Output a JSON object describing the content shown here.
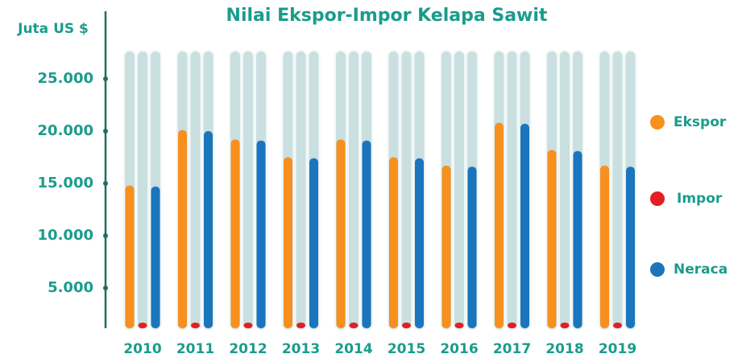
{
  "chart_data": {
    "type": "bar",
    "title": "Nilai Ekspor-Impor Kelapa Sawit",
    "y_label": "Juta US $",
    "categories": [
      "2010",
      "2011",
      "2012",
      "2013",
      "2014",
      "2015",
      "2016",
      "2017",
      "2018",
      "2019"
    ],
    "series": [
      {
        "name": "Ekspor",
        "color": "#f7901e",
        "values": [
          14800,
          20100,
          19200,
          17500,
          19200,
          17500,
          16700,
          20800,
          18200,
          16700
        ]
      },
      {
        "name": "Impor",
        "color": "#e31e24",
        "values": [
          100,
          100,
          100,
          100,
          100,
          100,
          100,
          100,
          100,
          100
        ]
      },
      {
        "name": "Neraca",
        "color": "#1b75bc",
        "values": [
          14700,
          20000,
          19100,
          17400,
          19100,
          17400,
          16600,
          20700,
          18100,
          16600
        ]
      }
    ],
    "ylim": [
      0,
      27500
    ],
    "yticks": [
      {
        "value": 5000,
        "label": "5.000"
      },
      {
        "value": 10000,
        "label": "10.000"
      },
      {
        "value": 15000,
        "label": "15.000"
      },
      {
        "value": 20000,
        "label": "20.000"
      },
      {
        "value": 25000,
        "label": "25.000"
      }
    ]
  }
}
